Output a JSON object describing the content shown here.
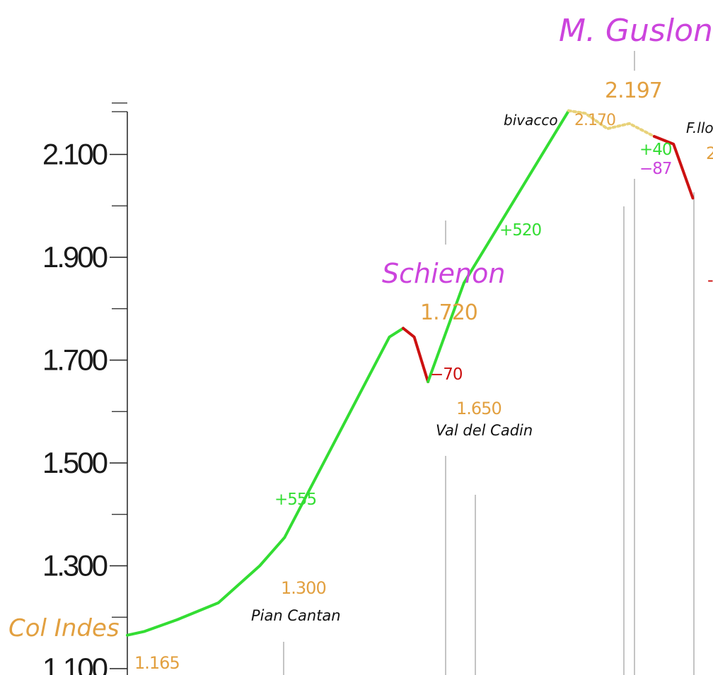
{
  "chart_data": {
    "type": "line",
    "xlabel": "",
    "ylabel": "",
    "ylim": [
      1100,
      2250
    ],
    "yticks": [
      "1.100",
      "1.300",
      "1.500",
      "1.700",
      "1.900",
      "2.100"
    ],
    "ytick_values": [
      1100,
      1300,
      1500,
      1700,
      1900,
      2100
    ],
    "colors": {
      "ascent": "#33dd33",
      "descent": "#cc1111",
      "trail_dotted": "#e8d27a",
      "elevation_label": "#e2a040",
      "peak_label": "#cc44dd",
      "place_label": "#111111",
      "axis": "#222222"
    },
    "profile": [
      {
        "x": 0,
        "y": 1165
      },
      {
        "x": 6,
        "y": 1172
      },
      {
        "x": 18,
        "y": 1195
      },
      {
        "x": 33,
        "y": 1228
      },
      {
        "x": 48,
        "y": 1300
      },
      {
        "x": 57,
        "y": 1355
      },
      {
        "x": 95,
        "y": 1745
      },
      {
        "x": 100,
        "y": 1762
      },
      {
        "x": 104,
        "y": 1745
      },
      {
        "x": 109,
        "y": 1658
      },
      {
        "x": 122,
        "y": 1850
      },
      {
        "x": 160,
        "y": 2185
      },
      {
        "x": 166,
        "y": 2180
      },
      {
        "x": 174,
        "y": 2150
      },
      {
        "x": 182,
        "y": 2160
      },
      {
        "x": 191,
        "y": 2135
      },
      {
        "x": 198,
        "y": 2120
      },
      {
        "x": 205,
        "y": 2015
      }
    ],
    "segments": [
      {
        "from": 0,
        "to": 7,
        "kind": "ascent"
      },
      {
        "from": 7,
        "to": 9,
        "kind": "descent"
      },
      {
        "from": 9,
        "to": 11,
        "kind": "ascent"
      },
      {
        "from": 11,
        "to": 15,
        "kind": "dotted"
      },
      {
        "from": 15,
        "to": 17,
        "kind": "descent"
      }
    ],
    "points": {
      "col_indes": {
        "name": "Col Indes",
        "elev": "1.165"
      },
      "pian_cantan": {
        "name": "Pian Cantan",
        "elev": "1.300"
      },
      "schienon": {
        "name": "Schienon",
        "elev": "1.720"
      },
      "val_del_cadin": {
        "name": "Val del Cadin",
        "elev": "1.650"
      },
      "bivacco": {
        "name": "bivacco",
        "elev": "2.170"
      },
      "m_guslon": {
        "name": "M. Guslon",
        "elev": "2.197"
      },
      "f_lli": {
        "name": "F.llo"
      }
    },
    "deltas": {
      "d555": "+555",
      "d70": "−70",
      "d520": "+520",
      "d40": "+40",
      "d87": "−87"
    },
    "partial_labels": {
      "right_elev": "2",
      "right_red": "-"
    }
  }
}
